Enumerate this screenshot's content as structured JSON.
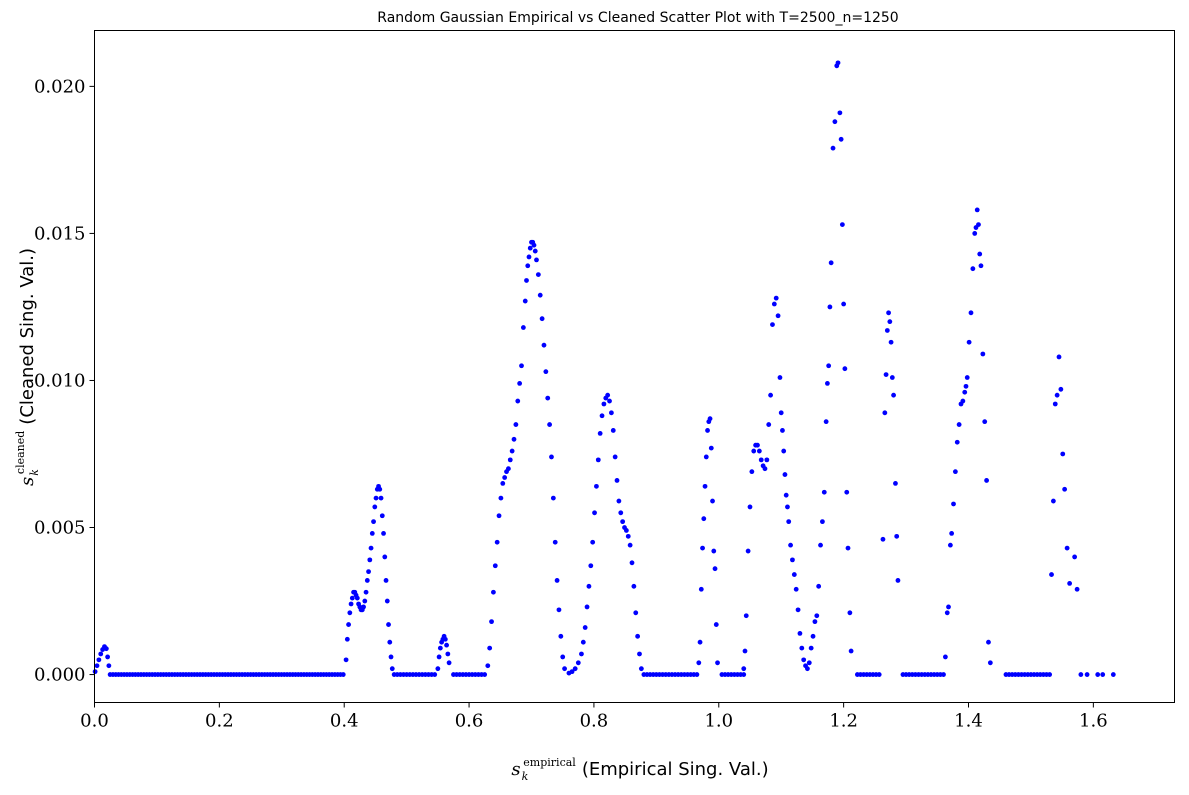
{
  "chart_data": {
    "type": "scatter",
    "title": "Random Gaussian Empirical vs Cleaned Scatter Plot with T=2500_n=1250",
    "xlabel": {
      "symbol": "s",
      "subscript": "k",
      "superscript": "empirical",
      "text": "(Empirical Sing. Val.)"
    },
    "ylabel": {
      "symbol": "s",
      "subscript": "k",
      "superscript": "cleaned",
      "text": "(Cleaned Sing. Val.)"
    },
    "xlim": [
      0.0,
      1.73
    ],
    "ylim": [
      -0.00095,
      0.0219
    ],
    "xticks": [
      0.0,
      0.2,
      0.4,
      0.6,
      0.8,
      1.0,
      1.2,
      1.4,
      1.6
    ],
    "xtick_labels": [
      "0.0",
      "0.2",
      "0.4",
      "0.6",
      "0.8",
      "1.0",
      "1.2",
      "1.4",
      "1.6"
    ],
    "yticks": [
      0.0,
      0.005,
      0.01,
      0.015,
      0.02
    ],
    "ytick_labels": [
      "0.000",
      "0.005",
      "0.010",
      "0.015",
      "0.020"
    ],
    "grid": false,
    "marker_color": "#0000ff",
    "zero_runs": [
      {
        "from": 0.025,
        "to": 0.4,
        "step": 0.0045
      },
      {
        "from": 0.48,
        "to": 0.545,
        "step": 0.005
      },
      {
        "from": 0.575,
        "to": 0.625,
        "step": 0.005
      },
      {
        "from": 0.88,
        "to": 0.965,
        "step": 0.005
      },
      {
        "from": 1.005,
        "to": 1.04,
        "step": 0.005
      },
      {
        "from": 1.222,
        "to": 1.26,
        "step": 0.005
      },
      {
        "from": 1.295,
        "to": 1.36,
        "step": 0.005
      },
      {
        "from": 1.46,
        "to": 1.53,
        "step": 0.005
      }
    ],
    "points": [
      [
        0.001,
        0.0001
      ],
      [
        0.004,
        0.0003
      ],
      [
        0.007,
        0.0005
      ],
      [
        0.01,
        0.0007
      ],
      [
        0.013,
        0.00085
      ],
      [
        0.016,
        0.00095
      ],
      [
        0.019,
        0.00088
      ],
      [
        0.021,
        0.0006
      ],
      [
        0.023,
        0.0003
      ],
      [
        0.403,
        0.0005
      ],
      [
        0.405,
        0.0012
      ],
      [
        0.407,
        0.0017
      ],
      [
        0.409,
        0.0021
      ],
      [
        0.411,
        0.0024
      ],
      [
        0.413,
        0.0026
      ],
      [
        0.415,
        0.0028
      ],
      [
        0.417,
        0.0028
      ],
      [
        0.419,
        0.0027
      ],
      [
        0.421,
        0.0026
      ],
      [
        0.423,
        0.0024
      ],
      [
        0.425,
        0.0023
      ],
      [
        0.427,
        0.0022
      ],
      [
        0.429,
        0.0022
      ],
      [
        0.431,
        0.0023
      ],
      [
        0.433,
        0.0025
      ],
      [
        0.435,
        0.0028
      ],
      [
        0.437,
        0.0032
      ],
      [
        0.439,
        0.0035
      ],
      [
        0.441,
        0.0039
      ],
      [
        0.443,
        0.0043
      ],
      [
        0.445,
        0.0048
      ],
      [
        0.447,
        0.0052
      ],
      [
        0.449,
        0.0057
      ],
      [
        0.451,
        0.006
      ],
      [
        0.453,
        0.0063
      ],
      [
        0.455,
        0.0064
      ],
      [
        0.457,
        0.0063
      ],
      [
        0.459,
        0.006
      ],
      [
        0.461,
        0.0054
      ],
      [
        0.463,
        0.0048
      ],
      [
        0.465,
        0.004
      ],
      [
        0.467,
        0.0032
      ],
      [
        0.469,
        0.0025
      ],
      [
        0.471,
        0.0017
      ],
      [
        0.473,
        0.0011
      ],
      [
        0.475,
        0.0006
      ],
      [
        0.477,
        0.0002
      ],
      [
        0.55,
        0.0002
      ],
      [
        0.552,
        0.0006
      ],
      [
        0.554,
        0.0009
      ],
      [
        0.556,
        0.0011
      ],
      [
        0.558,
        0.0012
      ],
      [
        0.56,
        0.0013
      ],
      [
        0.562,
        0.0012
      ],
      [
        0.564,
        0.001
      ],
      [
        0.566,
        0.0007
      ],
      [
        0.568,
        0.0004
      ],
      [
        0.63,
        0.0003
      ],
      [
        0.633,
        0.0009
      ],
      [
        0.636,
        0.0018
      ],
      [
        0.639,
        0.0028
      ],
      [
        0.642,
        0.0037
      ],
      [
        0.645,
        0.0045
      ],
      [
        0.648,
        0.0054
      ],
      [
        0.651,
        0.006
      ],
      [
        0.654,
        0.0065
      ],
      [
        0.657,
        0.0067
      ],
      [
        0.66,
        0.0069
      ],
      [
        0.663,
        0.007
      ],
      [
        0.666,
        0.0073
      ],
      [
        0.669,
        0.0076
      ],
      [
        0.672,
        0.008
      ],
      [
        0.675,
        0.0085
      ],
      [
        0.678,
        0.0093
      ],
      [
        0.681,
        0.0099
      ],
      [
        0.684,
        0.0105
      ],
      [
        0.687,
        0.0118
      ],
      [
        0.69,
        0.0127
      ],
      [
        0.692,
        0.0134
      ],
      [
        0.694,
        0.0139
      ],
      [
        0.696,
        0.0142
      ],
      [
        0.698,
        0.0145
      ],
      [
        0.7,
        0.0147
      ],
      [
        0.702,
        0.0147
      ],
      [
        0.704,
        0.0146
      ],
      [
        0.706,
        0.0144
      ],
      [
        0.708,
        0.0141
      ],
      [
        0.711,
        0.0136
      ],
      [
        0.714,
        0.0129
      ],
      [
        0.717,
        0.0121
      ],
      [
        0.72,
        0.0112
      ],
      [
        0.723,
        0.0103
      ],
      [
        0.726,
        0.0094
      ],
      [
        0.729,
        0.0085
      ],
      [
        0.732,
        0.0074
      ],
      [
        0.735,
        0.006
      ],
      [
        0.738,
        0.0045
      ],
      [
        0.741,
        0.0032
      ],
      [
        0.744,
        0.0022
      ],
      [
        0.747,
        0.0013
      ],
      [
        0.75,
        0.0006
      ],
      [
        0.753,
        0.0002
      ],
      [
        0.76,
        5e-05
      ],
      [
        0.765,
        0.0001
      ],
      [
        0.77,
        0.0002
      ],
      [
        0.775,
        0.0004
      ],
      [
        0.78,
        0.0007
      ],
      [
        0.783,
        0.0011
      ],
      [
        0.786,
        0.0016
      ],
      [
        0.789,
        0.0023
      ],
      [
        0.792,
        0.003
      ],
      [
        0.795,
        0.0037
      ],
      [
        0.798,
        0.0045
      ],
      [
        0.801,
        0.0055
      ],
      [
        0.804,
        0.0064
      ],
      [
        0.807,
        0.0073
      ],
      [
        0.81,
        0.0082
      ],
      [
        0.813,
        0.0088
      ],
      [
        0.816,
        0.0092
      ],
      [
        0.819,
        0.0094
      ],
      [
        0.822,
        0.0095
      ],
      [
        0.825,
        0.0093
      ],
      [
        0.828,
        0.0089
      ],
      [
        0.831,
        0.0083
      ],
      [
        0.834,
        0.0074
      ],
      [
        0.837,
        0.0066
      ],
      [
        0.84,
        0.0059
      ],
      [
        0.843,
        0.0055
      ],
      [
        0.846,
        0.0052
      ],
      [
        0.849,
        0.005
      ],
      [
        0.852,
        0.0049
      ],
      [
        0.855,
        0.0047
      ],
      [
        0.858,
        0.0044
      ],
      [
        0.861,
        0.0038
      ],
      [
        0.864,
        0.003
      ],
      [
        0.867,
        0.0021
      ],
      [
        0.87,
        0.0013
      ],
      [
        0.873,
        0.0007
      ],
      [
        0.876,
        0.0002
      ],
      [
        0.968,
        0.0004
      ],
      [
        0.97,
        0.0011
      ],
      [
        0.972,
        0.0029
      ],
      [
        0.974,
        0.0043
      ],
      [
        0.976,
        0.0053
      ],
      [
        0.978,
        0.0064
      ],
      [
        0.98,
        0.0074
      ],
      [
        0.982,
        0.0083
      ],
      [
        0.984,
        0.0086
      ],
      [
        0.986,
        0.0087
      ],
      [
        0.988,
        0.0077
      ],
      [
        0.99,
        0.0059
      ],
      [
        0.992,
        0.0042
      ],
      [
        0.994,
        0.0036
      ],
      [
        0.996,
        0.0017
      ],
      [
        0.998,
        0.0004
      ],
      [
        1.04,
        0.0002
      ],
      [
        1.042,
        0.0008
      ],
      [
        1.044,
        0.002
      ],
      [
        1.047,
        0.0042
      ],
      [
        1.05,
        0.0057
      ],
      [
        1.053,
        0.0069
      ],
      [
        1.056,
        0.0076
      ],
      [
        1.059,
        0.0078
      ],
      [
        1.062,
        0.0078
      ],
      [
        1.065,
        0.0076
      ],
      [
        1.068,
        0.0073
      ],
      [
        1.071,
        0.0071
      ],
      [
        1.074,
        0.007
      ],
      [
        1.077,
        0.0073
      ],
      [
        1.08,
        0.0085
      ],
      [
        1.083,
        0.0095
      ],
      [
        1.086,
        0.0119
      ],
      [
        1.089,
        0.0126
      ],
      [
        1.092,
        0.0128
      ],
      [
        1.095,
        0.0122
      ],
      [
        1.098,
        0.0101
      ],
      [
        1.1,
        0.0089
      ],
      [
        1.102,
        0.0083
      ],
      [
        1.104,
        0.0076
      ],
      [
        1.106,
        0.0068
      ],
      [
        1.108,
        0.0061
      ],
      [
        1.11,
        0.0057
      ],
      [
        1.112,
        0.0052
      ],
      [
        1.115,
        0.0044
      ],
      [
        1.118,
        0.0039
      ],
      [
        1.121,
        0.0034
      ],
      [
        1.124,
        0.0029
      ],
      [
        1.127,
        0.0022
      ],
      [
        1.13,
        0.0014
      ],
      [
        1.133,
        0.0009
      ],
      [
        1.136,
        0.0005
      ],
      [
        1.139,
        0.0003
      ],
      [
        1.142,
        0.0002
      ],
      [
        1.145,
        0.0004
      ],
      [
        1.148,
        0.0009
      ],
      [
        1.151,
        0.0013
      ],
      [
        1.154,
        0.0018
      ],
      [
        1.157,
        0.002
      ],
      [
        1.16,
        0.003
      ],
      [
        1.163,
        0.0044
      ],
      [
        1.166,
        0.0052
      ],
      [
        1.169,
        0.0062
      ],
      [
        1.172,
        0.0086
      ],
      [
        1.174,
        0.0099
      ],
      [
        1.176,
        0.0105
      ],
      [
        1.178,
        0.0125
      ],
      [
        1.18,
        0.014
      ],
      [
        1.183,
        0.0179
      ],
      [
        1.186,
        0.0188
      ],
      [
        1.189,
        0.0207
      ],
      [
        1.191,
        0.0208
      ],
      [
        1.194,
        0.0191
      ],
      [
        1.196,
        0.0182
      ],
      [
        1.198,
        0.0153
      ],
      [
        1.2,
        0.0126
      ],
      [
        1.202,
        0.0104
      ],
      [
        1.205,
        0.0062
      ],
      [
        1.207,
        0.0043
      ],
      [
        1.21,
        0.0021
      ],
      [
        1.212,
        0.0008
      ],
      [
        1.263,
        0.0046
      ],
      [
        1.266,
        0.0089
      ],
      [
        1.268,
        0.0102
      ],
      [
        1.27,
        0.0117
      ],
      [
        1.272,
        0.0123
      ],
      [
        1.274,
        0.012
      ],
      [
        1.276,
        0.0113
      ],
      [
        1.278,
        0.0101
      ],
      [
        1.28,
        0.0095
      ],
      [
        1.283,
        0.0065
      ],
      [
        1.285,
        0.0047
      ],
      [
        1.287,
        0.0032
      ],
      [
        1.363,
        0.0006
      ],
      [
        1.366,
        0.0021
      ],
      [
        1.368,
        0.0023
      ],
      [
        1.371,
        0.0044
      ],
      [
        1.373,
        0.0048
      ],
      [
        1.376,
        0.0058
      ],
      [
        1.379,
        0.0069
      ],
      [
        1.382,
        0.0079
      ],
      [
        1.385,
        0.0085
      ],
      [
        1.388,
        0.0092
      ],
      [
        1.391,
        0.0093
      ],
      [
        1.394,
        0.0096
      ],
      [
        1.396,
        0.0098
      ],
      [
        1.398,
        0.0101
      ],
      [
        1.401,
        0.0113
      ],
      [
        1.404,
        0.0123
      ],
      [
        1.407,
        0.0138
      ],
      [
        1.41,
        0.015
      ],
      [
        1.412,
        0.0152
      ],
      [
        1.414,
        0.0158
      ],
      [
        1.416,
        0.0153
      ],
      [
        1.418,
        0.0143
      ],
      [
        1.42,
        0.0139
      ],
      [
        1.423,
        0.0109
      ],
      [
        1.426,
        0.0086
      ],
      [
        1.429,
        0.0066
      ],
      [
        1.432,
        0.0011
      ],
      [
        1.435,
        0.0004
      ],
      [
        1.533,
        0.0034
      ],
      [
        1.536,
        0.0059
      ],
      [
        1.539,
        0.0092
      ],
      [
        1.542,
        0.0095
      ],
      [
        1.545,
        0.0108
      ],
      [
        1.548,
        0.0097
      ],
      [
        1.551,
        0.0075
      ],
      [
        1.554,
        0.0063
      ],
      [
        1.558,
        0.0043
      ],
      [
        1.562,
        0.0031
      ],
      [
        1.57,
        0.004
      ],
      [
        1.574,
        0.0029
      ],
      [
        1.58,
        0.0
      ],
      [
        1.59,
        0.0
      ],
      [
        1.607,
        0.0
      ],
      [
        1.615,
        0.0
      ],
      [
        1.632,
        0.0
      ]
    ]
  }
}
